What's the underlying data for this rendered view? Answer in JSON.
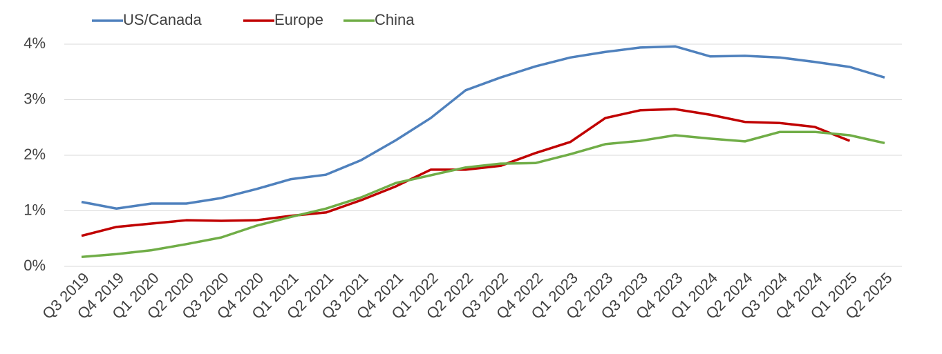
{
  "chart_data": {
    "type": "line",
    "categories": [
      "Q3 2019",
      "Q4 2019",
      "Q1 2020",
      "Q2 2020",
      "Q3 2020",
      "Q4 2020",
      "Q1 2021",
      "Q2 2021",
      "Q3 2021",
      "Q4 2021",
      "Q1 2022",
      "Q2 2022",
      "Q3 2022",
      "Q4 2022",
      "Q1 2023",
      "Q2 2023",
      "Q3 2023",
      "Q4 2023",
      "Q1 2024",
      "Q2 2024",
      "Q3 2024",
      "Q4 2024",
      "Q1 2025",
      "Q2 2025"
    ],
    "series": [
      {
        "name": "US/Canada",
        "color": "#4f81bd",
        "values": [
          1.16,
          1.04,
          1.13,
          1.13,
          1.23,
          1.39,
          1.57,
          1.65,
          1.91,
          2.27,
          2.67,
          3.17,
          3.4,
          3.6,
          3.76,
          3.86,
          3.94,
          3.96,
          3.78,
          3.79,
          3.76,
          3.68,
          3.59,
          3.4
        ]
      },
      {
        "name": "Europe",
        "color": "#c00000",
        "values": [
          0.55,
          0.71,
          0.77,
          0.83,
          0.82,
          0.83,
          0.91,
          0.97,
          1.19,
          1.44,
          1.74,
          1.74,
          1.81,
          2.04,
          2.24,
          2.67,
          2.81,
          2.83,
          2.73,
          2.6,
          2.58,
          2.51,
          2.26,
          null
        ]
      },
      {
        "name": "China",
        "color": "#70ad47",
        "values": [
          0.17,
          0.22,
          0.29,
          0.4,
          0.52,
          0.73,
          0.89,
          1.04,
          1.24,
          1.5,
          1.64,
          1.78,
          1.85,
          1.86,
          2.02,
          2.2,
          2.26,
          2.36,
          2.3,
          2.25,
          2.42,
          2.42,
          2.36,
          2.22
        ]
      }
    ],
    "ylim": [
      0,
      4
    ],
    "yticks": [
      {
        "value": 0,
        "label": "0%"
      },
      {
        "value": 1,
        "label": "1%"
      },
      {
        "value": 2,
        "label": "2%"
      },
      {
        "value": 3,
        "label": "3%"
      },
      {
        "value": 4,
        "label": "4%"
      }
    ],
    "grid": true,
    "legend": "top"
  }
}
